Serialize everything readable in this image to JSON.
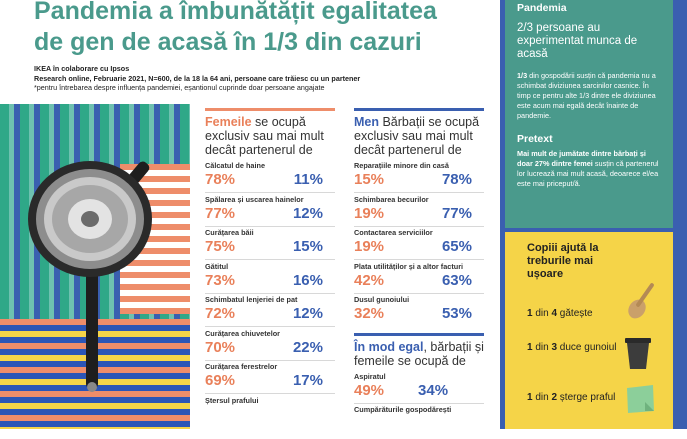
{
  "header": {
    "title_line1": "Pandemia a îmbunătățit egalitatea",
    "title_line2": "de gen de acasă în 1/3 din cazuri",
    "credit": "IKEA în colaborare cu Ipsos",
    "method": "Research online, Februarie 2021, N=600, de la 18 la 64 ani, persoane care trăiesc cu un partener",
    "note": "*pentru întrebarea despre influența pandemiei, eșantionul cuprinde doar persoane angajate"
  },
  "women_column": {
    "head_key": "Femeile",
    "head_rest": " se ocupă exclusiv sau mai mult decât partenerul de",
    "items": [
      {
        "label": "Călcatul de haine",
        "women": "78%",
        "men": "11%"
      },
      {
        "label": "Spălarea și uscarea hainelor",
        "women": "77%",
        "men": "12%"
      },
      {
        "label": "Curățarea băii",
        "women": "75%",
        "men": "15%"
      },
      {
        "label": "Gătitul",
        "women": "73%",
        "men": "16%"
      },
      {
        "label": "Schimbatul lenjeriei de pat",
        "women": "72%",
        "men": "12%"
      },
      {
        "label": "Curățarea chiuvetelor",
        "women": "70%",
        "men": "22%"
      },
      {
        "label": "Curățarea ferestrelor",
        "women": "69%",
        "men": "17%"
      },
      {
        "label": "Ștersul prafului",
        "women": "",
        "men": ""
      }
    ]
  },
  "men_column": {
    "head_key": "Men",
    "head_rest": " Bărbații se ocupă exclusiv sau mai mult decât partenerul de",
    "items": [
      {
        "label": "Reparațiile minore din casă",
        "women": "15%",
        "men": "78%"
      },
      {
        "label": "Schimbarea becurilor",
        "women": "19%",
        "men": "77%"
      },
      {
        "label": "Contactarea serviciilor",
        "women": "19%",
        "men": "65%"
      },
      {
        "label": "Plata utilităților și a altor facturi",
        "women": "42%",
        "men": "63%"
      },
      {
        "label": "Dusul gunoiului",
        "women": "32%",
        "men": "53%"
      }
    ],
    "equal_head_key": "În mod egal",
    "equal_head_rest": ", bărbații și femeile se ocupă de",
    "equal_items": [
      {
        "label": "Aspiratul",
        "women": "49%",
        "men": "34%"
      },
      {
        "label": "Cumpărăturile gospodărești",
        "women": "",
        "men": ""
      }
    ]
  },
  "side": {
    "pandemic_title": "Pandemia",
    "pandemic_big": "2/3 persoane au experimentat munca de acasă",
    "pandemic_small_bold": "1/3",
    "pandemic_small_rest": " din gospodării susțin că pandemia nu a schimbat diviziunea sarcinilor casnice. În timp ce pentru alte 1/3 dintre ele diviziunea este acum mai egală decât înainte de pandemie.",
    "pretext_title": "Pretext",
    "pretext_bold": "Mai mult de jumătate dintre bărbați și doar 27% dintre femei",
    "pretext_rest": " susțin că partenerul lor lucrează mai mult acasă, deoarece el/ea este mai priceput/ă.",
    "tips_title": "Copiii ajută la treburile mai ușoare",
    "tips": [
      {
        "n": "1",
        "mid": " din ",
        "d": "4",
        "rest": " gătește"
      },
      {
        "n": "1",
        "mid": " din ",
        "d": "3",
        "rest": " duce gunoiul"
      },
      {
        "n": "1",
        "mid": " din ",
        "d": "2",
        "rest": " șterge praful"
      }
    ]
  },
  "colors": {
    "teal": "#4a9a8c",
    "coral": "#e9805a",
    "blue": "#3a5fb0",
    "yellow": "#f5d448"
  }
}
